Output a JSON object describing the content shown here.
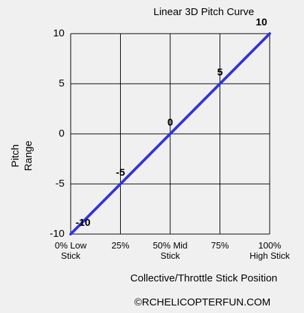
{
  "chart_data": {
    "type": "line",
    "title": "Linear 3D Pitch Curve",
    "x_label": "Collective/Throttle Stick Position",
    "y_label": "Pitch\nRange",
    "footer": "©RCHELICOPTERFUN.COM",
    "x": [
      0,
      25,
      50,
      75,
      100
    ],
    "series": [
      {
        "name": "Pitch",
        "color": "#3333dd",
        "values": [
          -10,
          -5,
          0,
          5,
          10
        ]
      }
    ],
    "xlim": [
      0,
      100
    ],
    "xticks": [
      {
        "value": 0,
        "label": "0% Low\nStick"
      },
      {
        "value": 25,
        "label": "25%"
      },
      {
        "value": 50,
        "label": "50% Mid\nStick"
      },
      {
        "value": 75,
        "label": "75%"
      },
      {
        "value": 100,
        "label": "100%\nHigh Stick"
      }
    ],
    "ylim": [
      -10,
      10
    ],
    "yticks": [
      -10,
      -5,
      0,
      5,
      10
    ],
    "grid": true
  }
}
